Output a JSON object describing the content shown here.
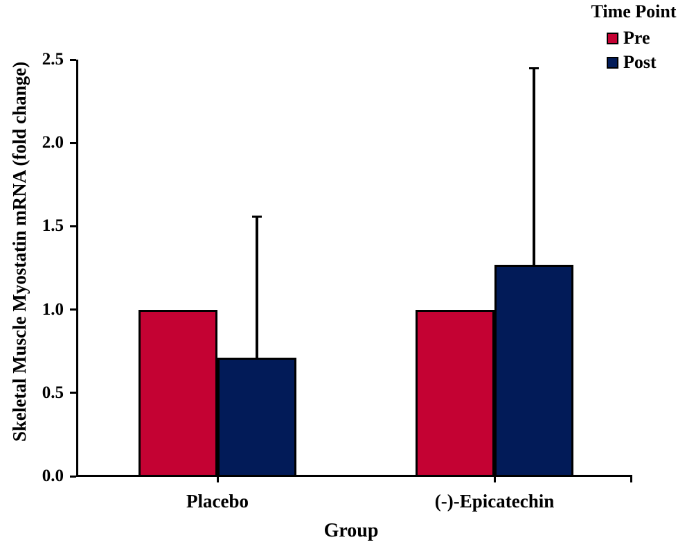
{
  "chart_data": {
    "type": "bar",
    "title": "",
    "xlabel": "Group",
    "ylabel": "Skeletal Muscle Myostatin mRNA (fold change)",
    "categories": [
      "Placebo",
      "(-)-Epicatechin"
    ],
    "series": [
      {
        "name": "Pre",
        "color": "#C40233",
        "values": [
          1.0,
          1.0
        ],
        "error_up": [
          0,
          0
        ]
      },
      {
        "name": "Post",
        "color": "#021B58",
        "values": [
          0.71,
          1.27
        ],
        "error_up": [
          0.85,
          1.18
        ]
      }
    ],
    "ylim": [
      0,
      2.5
    ],
    "yticks": [
      "0.0",
      "0.5",
      "1.0",
      "1.5",
      "2.0",
      "2.5"
    ],
    "legend": {
      "title": "Time Point",
      "entries": [
        "Pre",
        "Post"
      ],
      "position": "top-right"
    },
    "grid": false,
    "axis_color": "#000000",
    "bar_border_color": "#000000",
    "error_bar_color": "#000000",
    "error_bar_style": "upper-only"
  }
}
